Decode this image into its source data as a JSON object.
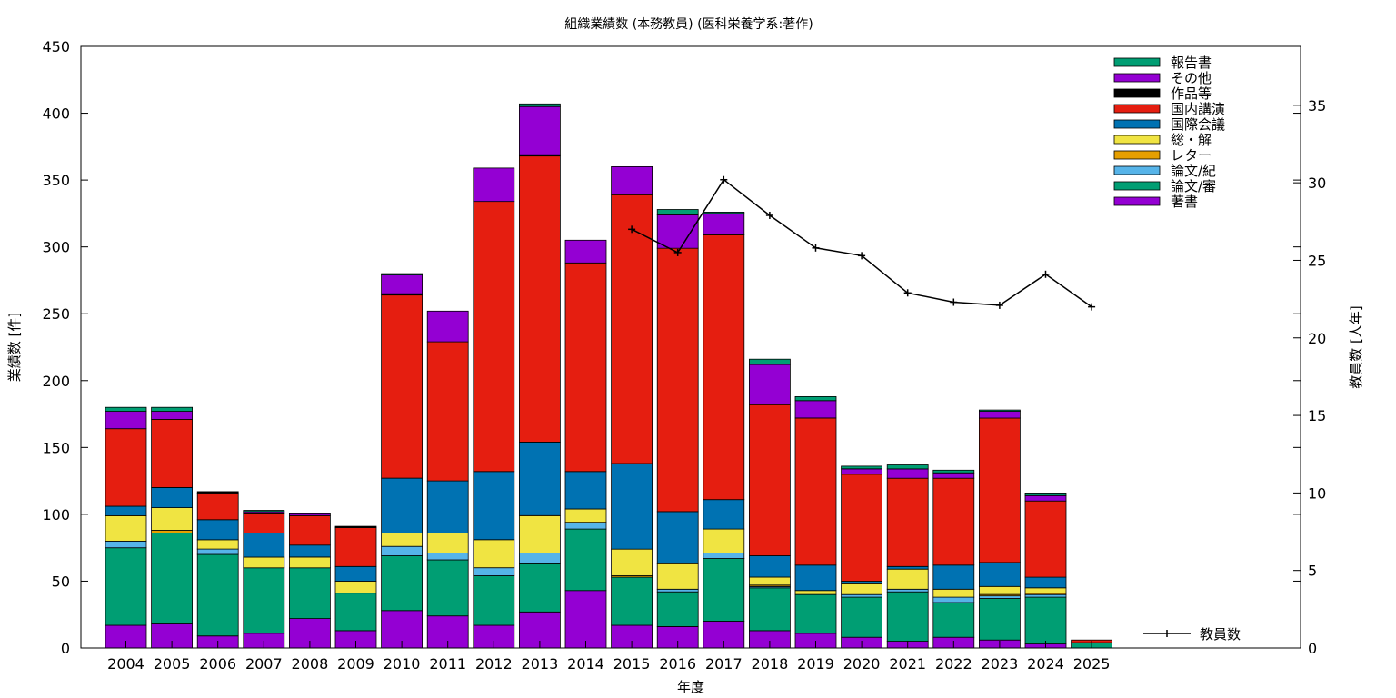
{
  "chart_data": {
    "type": "bar",
    "stacked": true,
    "title": "組織業績数 (本務教員) (医科栄養学系:著作)",
    "xlabel": "年度",
    "ylabel": "業績数 [件]",
    "y2label": "教員数 [人年]",
    "ylim": [
      0,
      450
    ],
    "y2lim": [
      0,
      38.8
    ],
    "yticks": [
      "0",
      "50",
      "100",
      "150",
      "200",
      "250",
      "300",
      "350",
      "400",
      "450"
    ],
    "y2ticks": [
      "0",
      "5",
      "10",
      "15",
      "20",
      "25",
      "30",
      "35"
    ],
    "categories": [
      "2004",
      "2005",
      "2006",
      "2007",
      "2008",
      "2009",
      "2010",
      "2011",
      "2012",
      "2013",
      "2014",
      "2015",
      "2016",
      "2017",
      "2018",
      "2019",
      "2020",
      "2021",
      "2022",
      "2023",
      "2024",
      "2025"
    ],
    "series": [
      {
        "name": "著書",
        "color": "#9400d3",
        "values": [
          17,
          18,
          9,
          11,
          22,
          13,
          28,
          24,
          17,
          27,
          43,
          17,
          16,
          20,
          13,
          11,
          8,
          5,
          8,
          6,
          3,
          0
        ]
      },
      {
        "name": "論文/審",
        "color": "#009e73",
        "values": [
          58,
          68,
          61,
          49,
          38,
          28,
          41,
          42,
          37,
          36,
          46,
          36,
          26,
          47,
          32,
          29,
          30,
          37,
          26,
          31,
          35,
          4
        ]
      },
      {
        "name": "論文/紀",
        "color": "#56b4e9",
        "values": [
          5,
          0,
          4,
          0,
          0,
          0,
          7,
          5,
          6,
          8,
          5,
          0,
          2,
          4,
          1,
          0,
          2,
          2,
          4,
          2,
          2,
          0
        ]
      },
      {
        "name": "レター",
        "color": "#e69f00",
        "values": [
          0,
          2,
          0,
          0,
          0,
          0,
          0,
          0,
          0,
          0,
          0,
          1,
          0,
          0,
          1,
          0,
          0,
          0,
          0,
          1,
          1,
          0
        ]
      },
      {
        "name": "総・解",
        "color": "#f0e442",
        "values": [
          19,
          17,
          7,
          8,
          8,
          9,
          10,
          15,
          21,
          28,
          10,
          20,
          19,
          18,
          6,
          3,
          8,
          15,
          6,
          6,
          4,
          0
        ]
      },
      {
        "name": "国際会議",
        "color": "#0072b2",
        "values": [
          7,
          15,
          15,
          18,
          9,
          11,
          41,
          39,
          51,
          55,
          28,
          64,
          39,
          22,
          16,
          19,
          2,
          2,
          18,
          18,
          8,
          0
        ]
      },
      {
        "name": "国内講演",
        "color": "#e51e10",
        "values": [
          58,
          51,
          20,
          15,
          22,
          29,
          137,
          104,
          202,
          214,
          156,
          201,
          197,
          198,
          113,
          110,
          80,
          66,
          65,
          108,
          57,
          2
        ]
      },
      {
        "name": "作品等",
        "color": "#000000",
        "values": [
          0,
          0,
          1,
          0,
          0,
          1,
          1,
          0,
          0,
          1,
          0,
          0,
          0,
          0,
          0,
          0,
          0,
          0,
          0,
          0,
          0,
          0
        ]
      },
      {
        "name": "その他",
        "color": "#9400d3",
        "values": [
          13,
          6,
          0,
          1,
          2,
          0,
          14,
          23,
          25,
          36,
          17,
          21,
          25,
          16,
          30,
          13,
          4,
          7,
          4,
          5,
          4,
          0
        ]
      },
      {
        "name": "報告書",
        "color": "#009e73",
        "values": [
          3,
          3,
          0,
          1,
          0,
          0,
          1,
          0,
          0,
          2,
          0,
          0,
          4,
          1,
          4,
          3,
          2,
          3,
          2,
          1,
          2,
          0
        ]
      }
    ],
    "line_series": {
      "name": "教員数",
      "color": "#000000",
      "x": [
        "2015",
        "2016",
        "2017",
        "2018",
        "2019",
        "2020",
        "2021",
        "2022",
        "2023",
        "2024",
        "2025"
      ],
      "values": [
        27.0,
        25.5,
        30.2,
        27.9,
        25.8,
        25.3,
        22.9,
        22.3,
        22.1,
        24.1,
        22.0
      ]
    },
    "legend_position": "top-right",
    "grid": false
  }
}
